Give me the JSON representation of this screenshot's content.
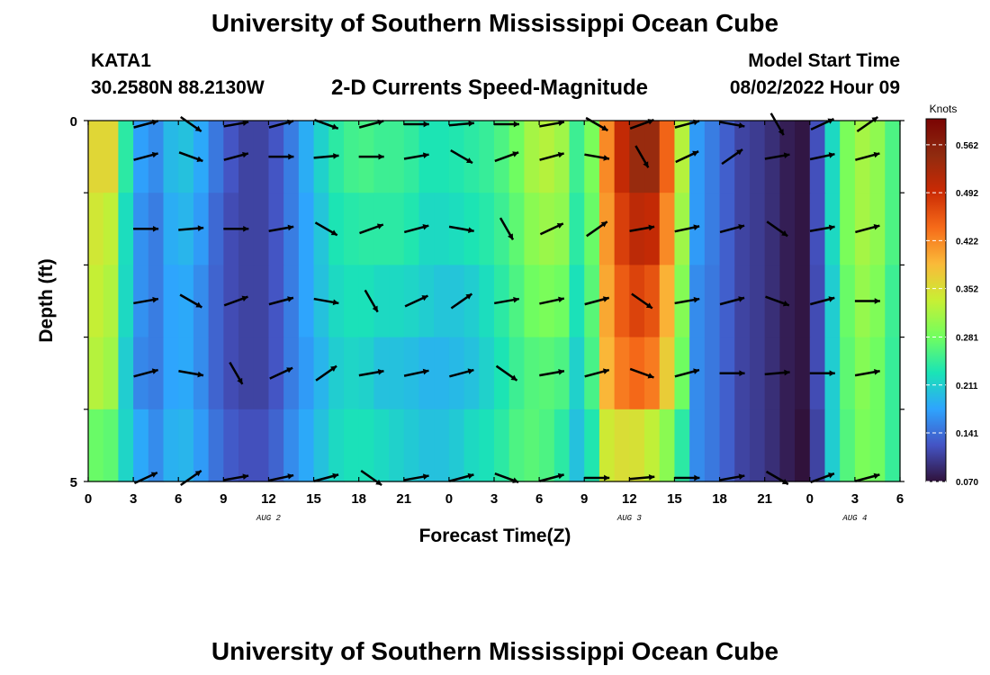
{
  "header": {
    "title": "University of Southern Mississippi Ocean Cube",
    "station": "KATA1",
    "coords": "30.2580N  88.2130W",
    "subtitle": "2-D Currents Speed-Magnitude",
    "model_start_label": "Model Start Time",
    "model_start_value": "08/02/2022 Hour 09",
    "footer_title": "University of Southern Mississippi Ocean Cube"
  },
  "chart_data": {
    "type": "heatmap",
    "title": "2-D Currents Speed-Magnitude",
    "xlabel": "Forecast Time(Z)",
    "ylabel": "Depth (ft)",
    "x_tick_labels": [
      "0",
      "3",
      "6",
      "9",
      "12",
      "15",
      "18",
      "21",
      "0",
      "3",
      "6",
      "9",
      "12",
      "15",
      "18",
      "21",
      "0",
      "3",
      "6"
    ],
    "x_hours": [
      0,
      3,
      6,
      9,
      12,
      15,
      18,
      21,
      24,
      27,
      30,
      33,
      36,
      39,
      42,
      45,
      48,
      51,
      54
    ],
    "day_labels": [
      {
        "label": "AUG 2",
        "hour": 12
      },
      {
        "label": "AUG 3",
        "hour": 36
      },
      {
        "label": "AUG 4",
        "hour": 51
      }
    ],
    "y_tick_labels": [
      "0",
      "5"
    ],
    "ylim": [
      0,
      5
    ],
    "depth_rows": 5,
    "colorbar": {
      "title": "Knots",
      "range": [
        0.07,
        0.6
      ],
      "tick_labels": [
        "0.562",
        "0.492",
        "0.422",
        "0.352",
        "0.281",
        "0.211",
        "0.141",
        "0.070"
      ],
      "tick_values": [
        0.562,
        0.492,
        0.422,
        0.352,
        0.281,
        0.211,
        0.141,
        0.07
      ]
    },
    "speed_profile_knots": {
      "hours": [
        0,
        1.5,
        3,
        4.5,
        6,
        7.5,
        9,
        10.5,
        12,
        13.5,
        15,
        16.5,
        18,
        19.5,
        21,
        22.5,
        24,
        25.5,
        27,
        28.5,
        30,
        31.5,
        33,
        34.5,
        36,
        37.5,
        39,
        40.5,
        42,
        43.5,
        45,
        46.5,
        48,
        49.5,
        51,
        52.5,
        54
      ],
      "depth_rows": [
        [
          0.36,
          0.36,
          0.18,
          0.16,
          0.21,
          0.18,
          0.13,
          0.11,
          0.11,
          0.15,
          0.2,
          0.24,
          0.26,
          0.25,
          0.25,
          0.23,
          0.23,
          0.24,
          0.25,
          0.28,
          0.33,
          0.31,
          0.22,
          0.42,
          0.54,
          0.54,
          0.4,
          0.17,
          0.14,
          0.11,
          0.1,
          0.08,
          0.07,
          0.22,
          0.32,
          0.3,
          0.24
        ],
        [
          0.35,
          0.33,
          0.17,
          0.15,
          0.2,
          0.17,
          0.12,
          0.11,
          0.11,
          0.15,
          0.19,
          0.23,
          0.24,
          0.24,
          0.24,
          0.22,
          0.22,
          0.23,
          0.24,
          0.27,
          0.31,
          0.3,
          0.21,
          0.41,
          0.51,
          0.5,
          0.38,
          0.17,
          0.14,
          0.11,
          0.1,
          0.08,
          0.07,
          0.22,
          0.32,
          0.3,
          0.24
        ],
        [
          0.34,
          0.32,
          0.17,
          0.15,
          0.19,
          0.16,
          0.12,
          0.11,
          0.11,
          0.15,
          0.19,
          0.22,
          0.23,
          0.22,
          0.22,
          0.21,
          0.2,
          0.21,
          0.23,
          0.26,
          0.29,
          0.28,
          0.2,
          0.4,
          0.48,
          0.46,
          0.36,
          0.16,
          0.14,
          0.11,
          0.1,
          0.08,
          0.07,
          0.21,
          0.31,
          0.29,
          0.23
        ],
        [
          0.33,
          0.31,
          0.16,
          0.15,
          0.19,
          0.16,
          0.12,
          0.11,
          0.11,
          0.15,
          0.18,
          0.21,
          0.22,
          0.2,
          0.2,
          0.19,
          0.19,
          0.2,
          0.22,
          0.25,
          0.27,
          0.26,
          0.19,
          0.39,
          0.45,
          0.43,
          0.34,
          0.16,
          0.14,
          0.11,
          0.1,
          0.08,
          0.07,
          0.21,
          0.3,
          0.28,
          0.23
        ],
        [
          0.28,
          0.27,
          0.19,
          0.16,
          0.2,
          0.17,
          0.13,
          0.12,
          0.12,
          0.16,
          0.19,
          0.22,
          0.23,
          0.22,
          0.21,
          0.2,
          0.2,
          0.22,
          0.23,
          0.26,
          0.27,
          0.24,
          0.18,
          0.34,
          0.36,
          0.33,
          0.28,
          0.16,
          0.14,
          0.11,
          0.1,
          0.08,
          0.06,
          0.21,
          0.29,
          0.28,
          0.23
        ]
      ]
    },
    "vector_note": "Current direction arrows at 3-hour intervals for each depth row"
  }
}
